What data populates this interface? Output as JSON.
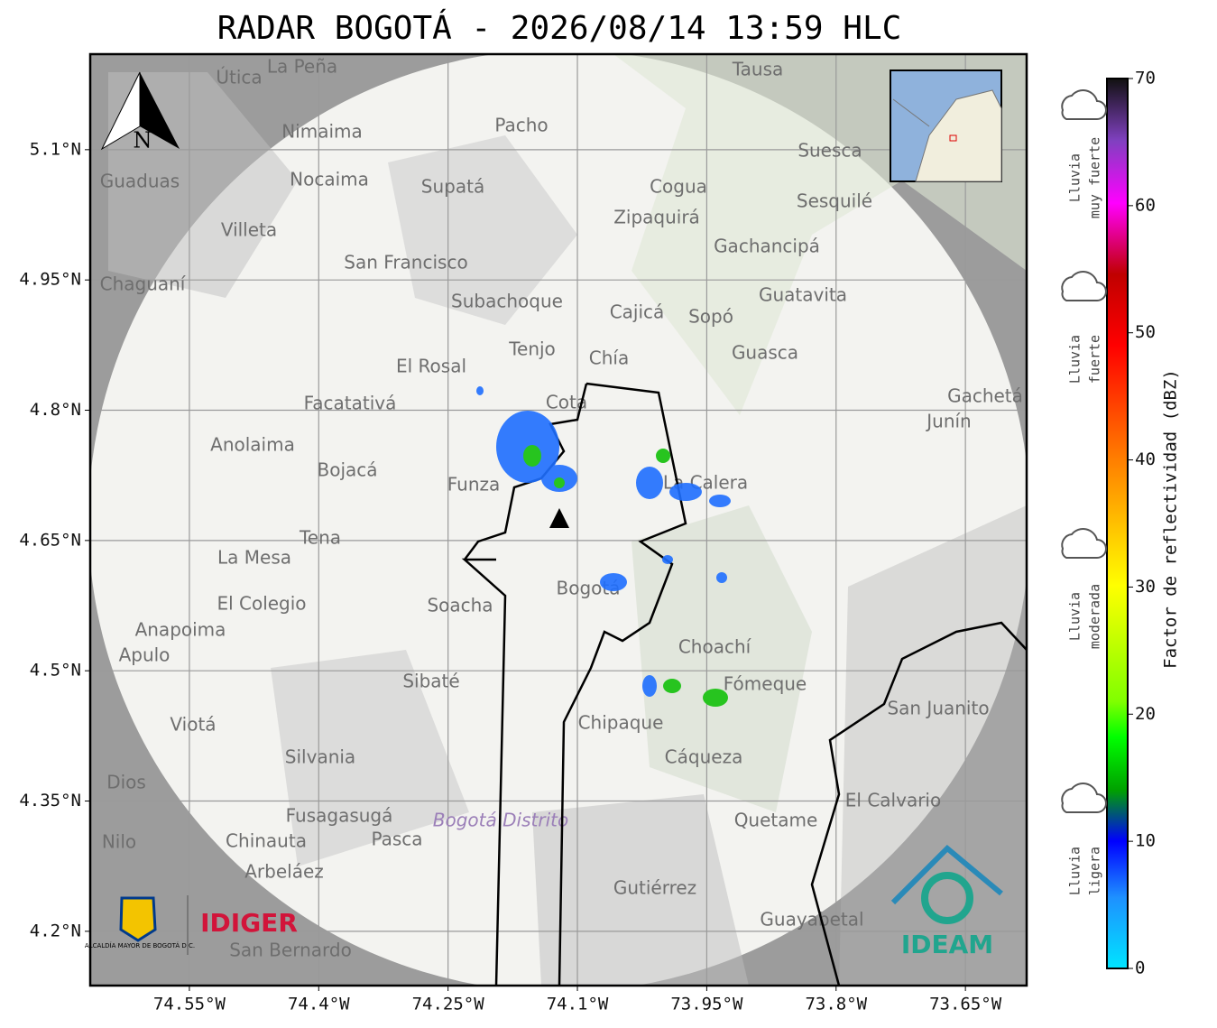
{
  "title": "RADAR BOGOTÁ - 2026/08/14 13:59 HLC",
  "map": {
    "lonlim": [
      -74.665,
      -73.579
    ],
    "latlim": [
      4.1375,
      5.21
    ],
    "lon_ticks": [
      {
        "value": -74.55,
        "label": "74.55°W"
      },
      {
        "value": -74.4,
        "label": "74.4°W"
      },
      {
        "value": -74.25,
        "label": "74.25°W"
      },
      {
        "value": -74.1,
        "label": "74.1°W"
      },
      {
        "value": -73.95,
        "label": "73.95°W"
      },
      {
        "value": -73.8,
        "label": "73.8°W"
      },
      {
        "value": -73.65,
        "label": "73.65°W"
      }
    ],
    "lat_ticks": [
      {
        "value": 5.1,
        "label": "5.1°N"
      },
      {
        "value": 4.95,
        "label": "4.95°N"
      },
      {
        "value": 4.8,
        "label": "4.8°N"
      },
      {
        "value": 4.65,
        "label": "4.65°N"
      },
      {
        "value": 4.5,
        "label": "4.5°N"
      },
      {
        "value": 4.35,
        "label": "4.35°N"
      },
      {
        "value": 4.2,
        "label": "4.2°N"
      }
    ],
    "north": "N",
    "places": [
      "La Peña",
      "Útica",
      "Tausa",
      "Pacho",
      "Nimaima",
      "Nocaima",
      "Supatá",
      "Guaduas",
      "Cogua",
      "Suesca",
      "Sesquilé",
      "Zipaquirá",
      "Villeta",
      "San Francisco",
      "Gachancipá",
      "Chaguaní",
      "Guatavita",
      "Subachoque",
      "Cajicá",
      "Sopó",
      "Tenjo",
      "Chía",
      "El Rosal",
      "Guasca",
      "Facatativá",
      "Cota",
      "Gachetá",
      "Junín",
      "Anolaima",
      "Bojacá",
      "Funza",
      "La Calera",
      "Tena",
      "La Mesa",
      "Bogotá",
      "El Colegio",
      "Soacha",
      "Anapoima",
      "Apulo",
      "Choachí",
      "Sibaté",
      "Fómeque",
      "San Juanito",
      "Chipaque",
      "Viotá",
      "Silvania",
      "Cáqueza",
      "Dios",
      "El Calvario",
      "Fusagasugá",
      "Quetame",
      "Nilo",
      "Chinauta",
      "Pasca",
      "Arbeláez",
      "Gutiérrez",
      "Guayabetal",
      "San Bernardo",
      "Bogotá Distrito"
    ]
  },
  "colorbar": {
    "label": "Factor de reflectividad (dBZ)",
    "lim": [
      0,
      70
    ],
    "ticks": [
      0,
      10,
      20,
      30,
      40,
      50,
      60,
      70
    ],
    "categories": [
      [
        "Lluvia",
        "muy fuerte"
      ],
      [
        "Lluvia",
        "fuerte"
      ],
      [
        "Lluvia",
        "moderada"
      ],
      [
        "Lluvia",
        "ligera"
      ]
    ]
  },
  "logos": {
    "alcaldia": "ALCALDÍA MAYOR DE BOGOTÁ D.C.",
    "idiger": "IDIGER",
    "ideam": "IDEAM"
  }
}
